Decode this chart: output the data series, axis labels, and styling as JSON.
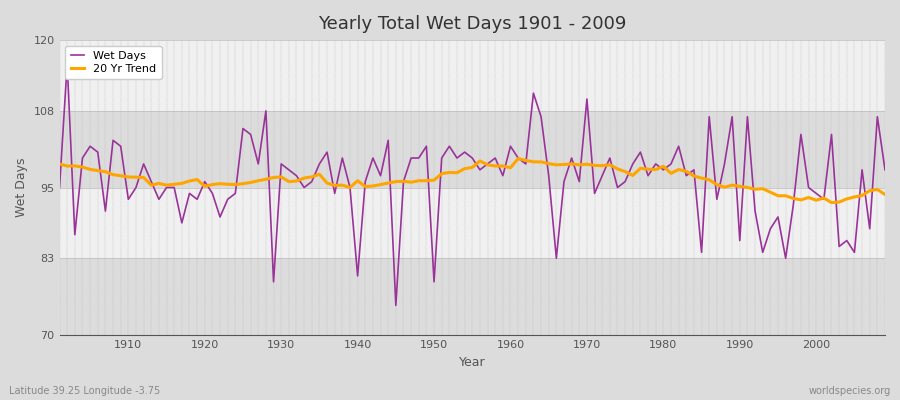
{
  "title": "Yearly Total Wet Days 1901 - 2009",
  "xlabel": "Year",
  "ylabel": "Wet Days",
  "subtitle_left": "Latitude 39.25 Longitude -3.75",
  "subtitle_right": "worldspecies.org",
  "ylim": [
    70,
    120
  ],
  "yticks": [
    70,
    83,
    95,
    108,
    120
  ],
  "xlim": [
    1901,
    2009
  ],
  "xticks": [
    1910,
    1920,
    1930,
    1940,
    1950,
    1960,
    1970,
    1980,
    1990,
    2000
  ],
  "wet_days_color": "#993399",
  "trend_color": "#FFA500",
  "background_color": "#DCDCDC",
  "axes_bg_color": "#F0F0F0",
  "band_color_dark": "#DCDCDC",
  "band_color_light": "#F0F0F0",
  "legend_wet_days": "Wet Days",
  "legend_trend": "20 Yr Trend",
  "years": [
    1901,
    1902,
    1903,
    1904,
    1905,
    1906,
    1907,
    1908,
    1909,
    1910,
    1911,
    1912,
    1913,
    1914,
    1915,
    1916,
    1917,
    1918,
    1919,
    1920,
    1921,
    1922,
    1923,
    1924,
    1925,
    1926,
    1927,
    1928,
    1929,
    1930,
    1931,
    1932,
    1933,
    1934,
    1935,
    1936,
    1937,
    1938,
    1939,
    1940,
    1941,
    1942,
    1943,
    1944,
    1945,
    1946,
    1947,
    1948,
    1949,
    1950,
    1951,
    1952,
    1953,
    1954,
    1955,
    1956,
    1957,
    1958,
    1959,
    1960,
    1961,
    1962,
    1963,
    1964,
    1965,
    1966,
    1967,
    1968,
    1969,
    1970,
    1971,
    1972,
    1973,
    1974,
    1975,
    1976,
    1977,
    1978,
    1979,
    1980,
    1981,
    1982,
    1983,
    1984,
    1985,
    1986,
    1987,
    1988,
    1989,
    1990,
    1991,
    1992,
    1993,
    1994,
    1995,
    1996,
    1997,
    1998,
    1999,
    2000,
    2001,
    2002,
    2003,
    2004,
    2005,
    2006,
    2007,
    2008,
    2009
  ],
  "wet_days": [
    95,
    116,
    87,
    100,
    102,
    101,
    91,
    103,
    102,
    93,
    95,
    99,
    96,
    93,
    95,
    95,
    89,
    94,
    93,
    96,
    94,
    90,
    93,
    94,
    105,
    104,
    99,
    108,
    79,
    99,
    98,
    97,
    95,
    96,
    99,
    101,
    94,
    100,
    95,
    80,
    96,
    100,
    97,
    103,
    75,
    96,
    100,
    100,
    102,
    79,
    100,
    102,
    100,
    101,
    100,
    98,
    99,
    100,
    97,
    102,
    100,
    99,
    111,
    107,
    97,
    83,
    96,
    100,
    96,
    110,
    94,
    97,
    100,
    95,
    96,
    99,
    101,
    97,
    99,
    98,
    99,
    102,
    97,
    98,
    84,
    107,
    93,
    99,
    107,
    86,
    107,
    91,
    84,
    88,
    90,
    83,
    92,
    104,
    95,
    94,
    93,
    104,
    85,
    86,
    84,
    98,
    88,
    107,
    98
  ]
}
